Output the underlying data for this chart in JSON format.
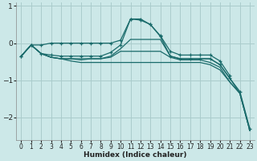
{
  "xlabel": "Humidex (Indice chaleur)",
  "background_color": "#cce8e8",
  "grid_color": "#aacccc",
  "line_color": "#1a6b6b",
  "xlim": [
    -0.5,
    23.5
  ],
  "ylim": [
    -2.6,
    1.1
  ],
  "yticks": [
    -2,
    -1,
    0,
    1
  ],
  "xticks": [
    0,
    1,
    2,
    3,
    4,
    5,
    6,
    7,
    8,
    9,
    10,
    11,
    12,
    13,
    14,
    15,
    16,
    17,
    18,
    19,
    20,
    21,
    22,
    23
  ],
  "lines": [
    {
      "x": [
        0,
        1,
        2,
        3,
        4,
        5,
        6,
        7,
        8,
        9,
        10,
        11,
        12,
        13,
        14,
        15,
        16,
        17,
        18,
        19,
        20,
        21
      ],
      "y": [
        -0.35,
        -0.05,
        -0.05,
        0.0,
        0.0,
        0.0,
        0.0,
        0.0,
        0.0,
        0.0,
        0.08,
        0.65,
        0.65,
        0.5,
        0.2,
        -0.22,
        -0.32,
        -0.32,
        -0.32,
        -0.32,
        -0.48,
        -0.88
      ],
      "has_markers": true
    },
    {
      "x": [
        0,
        1,
        2,
        3,
        4,
        5,
        6,
        7,
        8,
        9,
        10,
        11,
        12,
        13,
        14,
        15,
        16,
        17,
        18,
        19,
        20,
        21,
        22,
        23
      ],
      "y": [
        -0.35,
        -0.05,
        -0.28,
        -0.32,
        -0.35,
        -0.35,
        -0.35,
        -0.35,
        -0.35,
        -0.25,
        -0.05,
        0.65,
        0.62,
        0.5,
        0.18,
        -0.35,
        -0.42,
        -0.42,
        -0.42,
        -0.42,
        -0.58,
        -0.95,
        -1.3,
        -2.3
      ],
      "has_markers": true
    },
    {
      "x": [
        0,
        1,
        2,
        3,
        4,
        5,
        6,
        7,
        8,
        9,
        10,
        11,
        12,
        13,
        14,
        15,
        16,
        17,
        18,
        19,
        20,
        21,
        22,
        23
      ],
      "y": [
        -0.35,
        -0.05,
        -0.28,
        -0.38,
        -0.42,
        -0.42,
        -0.42,
        -0.42,
        -0.42,
        -0.35,
        -0.15,
        0.1,
        0.1,
        0.1,
        0.1,
        -0.35,
        -0.42,
        -0.42,
        -0.42,
        -0.42,
        -0.58,
        -0.95,
        -1.35,
        -2.35
      ],
      "has_markers": false
    },
    {
      "x": [
        0,
        1,
        2,
        3,
        4,
        5,
        6,
        7,
        8,
        9,
        10,
        11,
        12,
        13,
        14,
        15,
        16,
        17,
        18,
        19,
        20,
        21,
        22,
        23
      ],
      "y": [
        -0.35,
        -0.05,
        -0.28,
        -0.38,
        -0.42,
        -0.42,
        -0.45,
        -0.42,
        -0.42,
        -0.38,
        -0.22,
        -0.22,
        -0.22,
        -0.22,
        -0.22,
        -0.38,
        -0.45,
        -0.45,
        -0.45,
        -0.52,
        -0.65,
        -1.05,
        -1.35,
        -2.35
      ],
      "has_markers": false
    },
    {
      "x": [
        0,
        1,
        2,
        3,
        4,
        5,
        6,
        7,
        8,
        9,
        10,
        11,
        12,
        13,
        14,
        15,
        16,
        17,
        18,
        19,
        20,
        21,
        22,
        23
      ],
      "y": [
        -0.35,
        -0.05,
        -0.28,
        -0.38,
        -0.42,
        -0.48,
        -0.52,
        -0.52,
        -0.52,
        -0.52,
        -0.52,
        -0.52,
        -0.52,
        -0.52,
        -0.52,
        -0.52,
        -0.52,
        -0.52,
        -0.52,
        -0.58,
        -0.72,
        -1.05,
        -1.35,
        -2.35
      ],
      "has_markers": false
    }
  ]
}
